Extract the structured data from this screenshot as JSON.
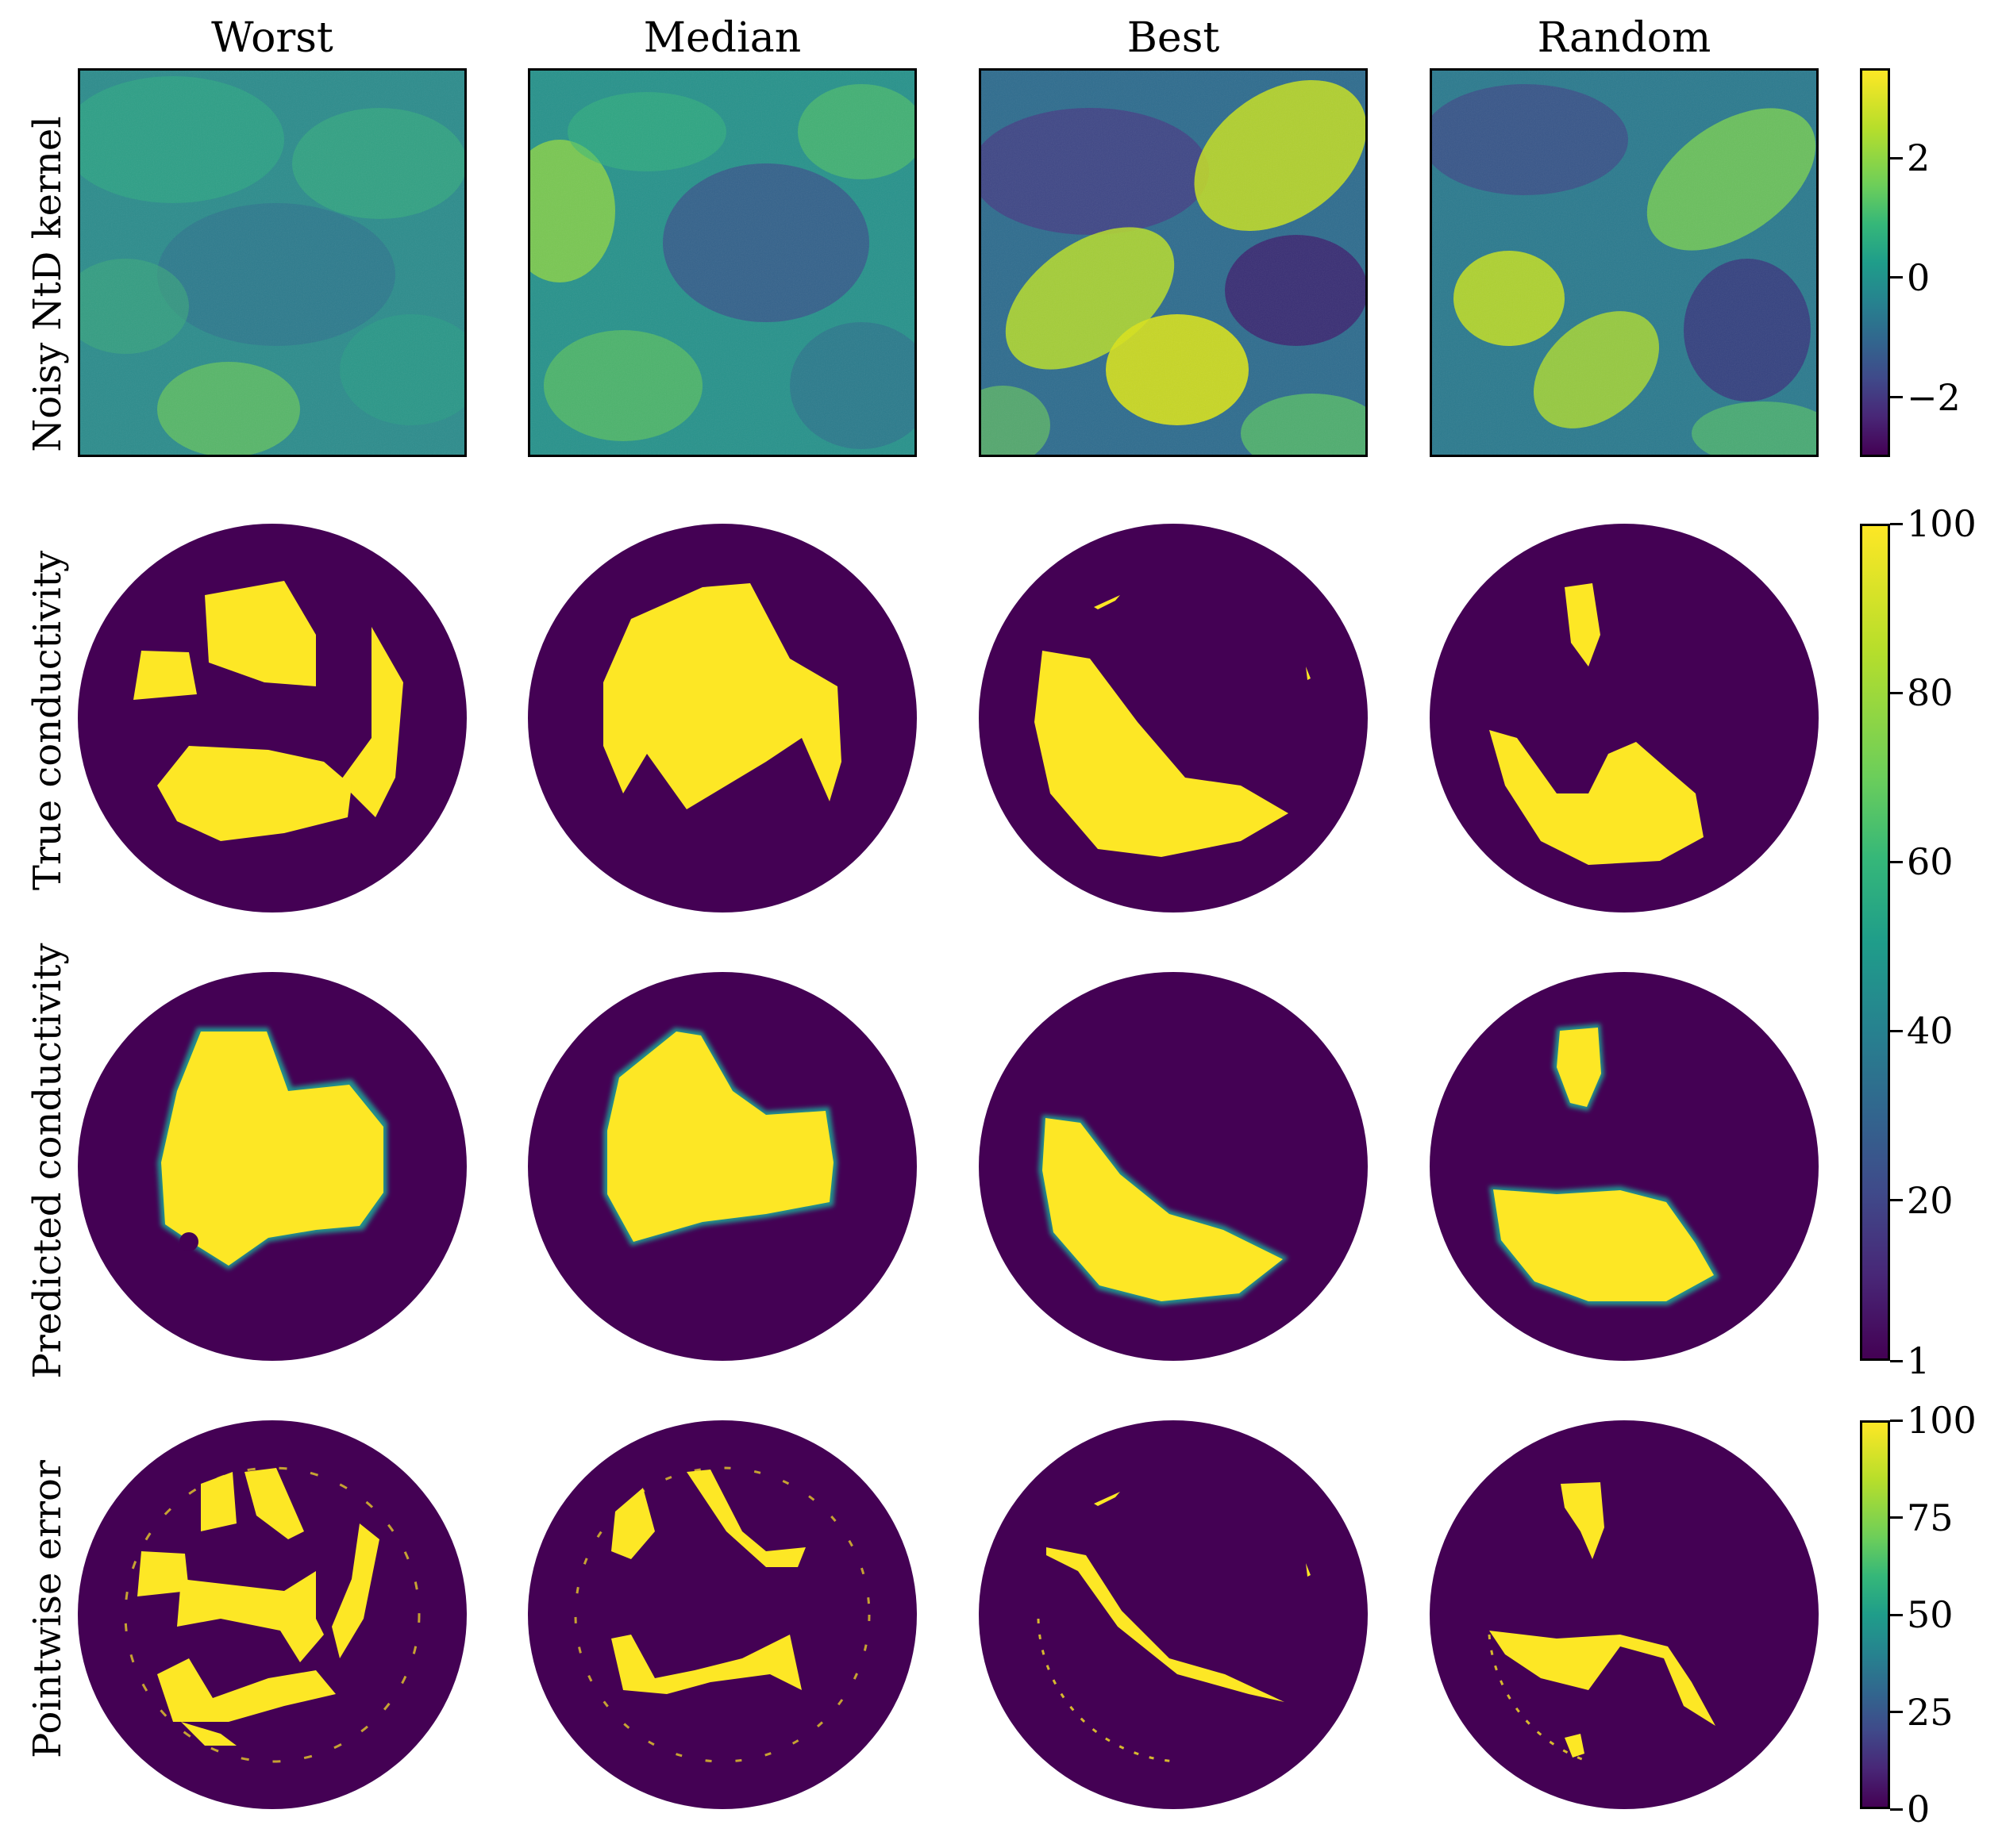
{
  "columns": [
    "Worst",
    "Median",
    "Best",
    "Random"
  ],
  "rows": [
    "Noisy NtD kernel",
    "True conductivity",
    "Predicted conductivity",
    "Pointwise error"
  ],
  "colorbars": {
    "kernel": {
      "ticks": [
        "2",
        "0",
        "−2"
      ],
      "values": [
        2,
        0,
        -2
      ],
      "range": [
        -3,
        3.5
      ]
    },
    "conductivity": {
      "ticks": [
        "100",
        "80",
        "60",
        "40",
        "20",
        "1"
      ],
      "values": [
        100,
        80,
        60,
        40,
        20,
        1
      ],
      "range": [
        1,
        100
      ]
    },
    "error": {
      "ticks": [
        "100",
        "75",
        "50",
        "25",
        "0"
      ],
      "values": [
        100,
        75,
        50,
        25,
        0
      ],
      "range": [
        0,
        100
      ]
    }
  },
  "colors": {
    "low": "#440154",
    "high": "#fde725",
    "mid": "#21918c"
  }
}
